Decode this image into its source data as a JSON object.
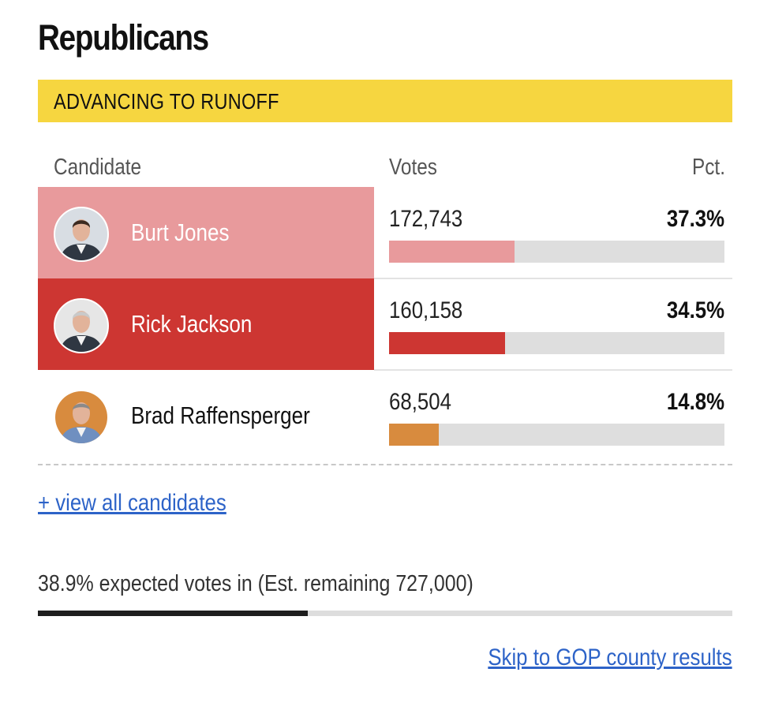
{
  "party_title": "Republicans",
  "banner_label": "ADVANCING TO RUNOFF",
  "columns": {
    "candidate": "Candidate",
    "votes": "Votes",
    "pct": "Pct."
  },
  "candidates": [
    {
      "name": "Burt Jones",
      "votes": "172,743",
      "pct": "37.3%",
      "pct_value": 37.3,
      "cell_color": "#e89a9c",
      "name_color": "#ffffff",
      "bar_color": "#e89a9c",
      "avatar_bg": "#d8dde3",
      "avatar_icon": "candidate-photo"
    },
    {
      "name": "Rick Jackson",
      "votes": "160,158",
      "pct": "34.5%",
      "pct_value": 34.5,
      "cell_color": "#cd3632",
      "name_color": "#ffffff",
      "bar_color": "#cd3632",
      "avatar_bg": "#e6e6e6",
      "avatar_icon": "candidate-photo"
    },
    {
      "name": "Brad Raffensperger",
      "votes": "68,504",
      "pct": "14.8%",
      "pct_value": 14.8,
      "cell_color": "#ffffff",
      "name_color": "#111111",
      "bar_color": "#d88b3e",
      "avatar_bg": "#d88b3e",
      "avatar_icon": "candidate-photo"
    }
  ],
  "bar_scale_max_pct": 100,
  "view_all_link": "+ view all candidates",
  "expected_votes_text": "38.9% expected votes in (Est. remaining 727,000)",
  "expected_votes_pct": 38.9,
  "skip_link": "Skip to GOP county results"
}
